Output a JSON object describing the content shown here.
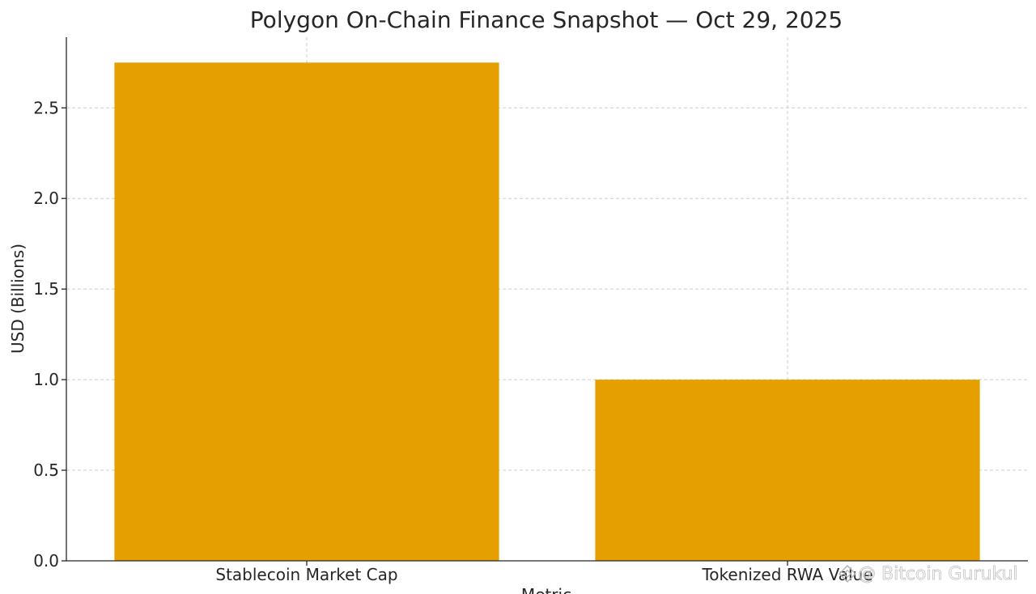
{
  "chart_data": {
    "type": "bar",
    "title": "Polygon On-Chain Finance Snapshot — Oct 29, 2025",
    "xlabel": "Metric",
    "ylabel": "USD (Billions)",
    "categories": [
      "Stablecoin Market Cap",
      "Tokenized RWA Value"
    ],
    "values": [
      2.75,
      1.0
    ],
    "ylim": [
      0,
      2.89
    ],
    "yticks": [
      "0.0",
      "0.5",
      "1.0",
      "1.5",
      "2.0",
      "2.5"
    ],
    "bar_color": "#e5a000",
    "grid": true
  },
  "watermark": {
    "icon": "diamond-logo-icon",
    "text": "@ Bitcoin Gurukul"
  }
}
